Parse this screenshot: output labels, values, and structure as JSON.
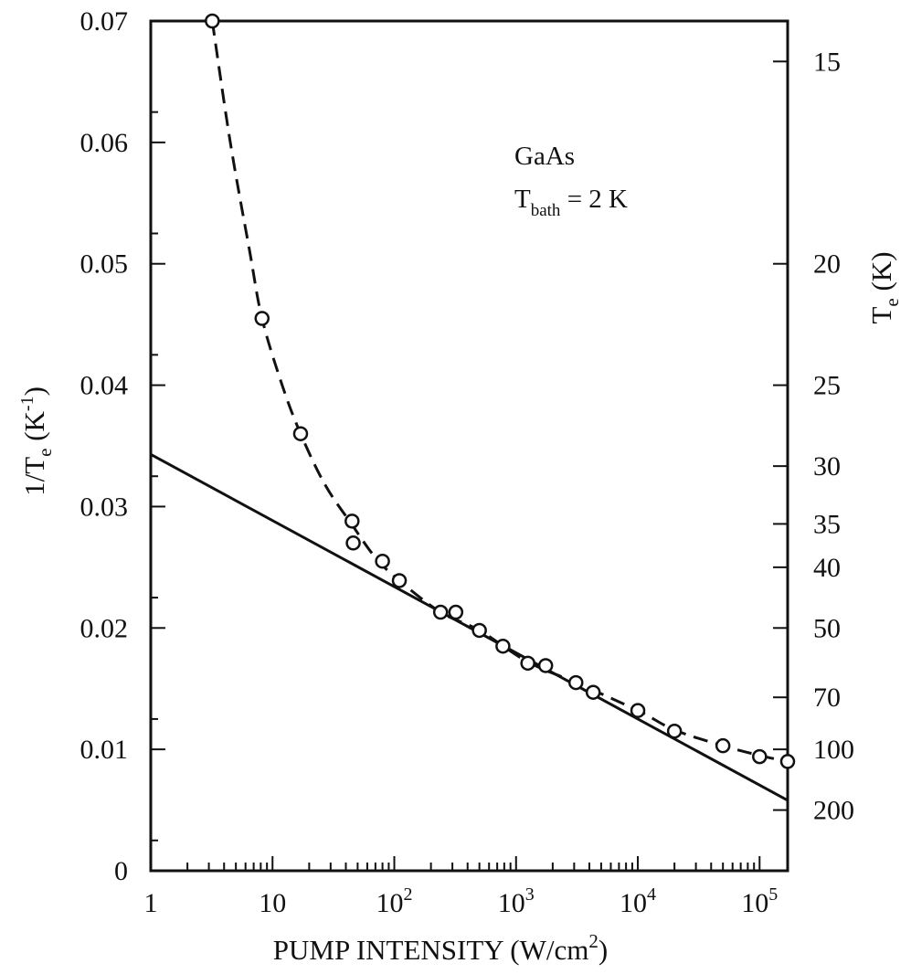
{
  "chart_data": {
    "type": "scatter",
    "title": "",
    "xlabel": "PUMP INTENSITY (W/cm²)",
    "ylabel": "1/Tₑ (K⁻¹)",
    "y2label": "Tₑ (K)",
    "x_scale": "log",
    "xlim": [
      1,
      170000
    ],
    "ylim": [
      0,
      0.07
    ],
    "x_ticks": [
      {
        "value": 1,
        "label": "1",
        "sup": ""
      },
      {
        "value": 10,
        "label": "10",
        "sup": ""
      },
      {
        "value": 100,
        "label": "10",
        "sup": "2"
      },
      {
        "value": 1000,
        "label": "10",
        "sup": "3"
      },
      {
        "value": 10000,
        "label": "10",
        "sup": "4"
      },
      {
        "value": 100000,
        "label": "10",
        "sup": "5"
      }
    ],
    "y_ticks": [
      "0",
      "0.01",
      "0.02",
      "0.03",
      "0.04",
      "0.05",
      "0.06",
      "0.07"
    ],
    "y_tick_values": [
      0,
      0.01,
      0.02,
      0.03,
      0.04,
      0.05,
      0.06,
      0.07
    ],
    "y2_ticks": [
      "15",
      "20",
      "25",
      "30",
      "35",
      "40",
      "50",
      "70",
      "100",
      "200"
    ],
    "y2_tick_values": [
      15,
      20,
      25,
      30,
      35,
      40,
      50,
      70,
      100,
      200
    ],
    "annotation": {
      "line1": "GaAs",
      "line2_main": "T",
      "line2_sub": "bath",
      "line2_rest": " = 2 K"
    },
    "series": [
      {
        "style": "open-circle",
        "points": [
          [
            3.2,
            0.07
          ],
          [
            8.2,
            0.0455
          ],
          [
            17,
            0.036
          ],
          [
            45,
            0.0288
          ],
          [
            46,
            0.027
          ],
          [
            80,
            0.0255
          ],
          [
            110,
            0.0239
          ],
          [
            240,
            0.0213
          ],
          [
            320,
            0.0213
          ],
          [
            500,
            0.0198
          ],
          [
            780,
            0.0185
          ],
          [
            1250,
            0.0171
          ],
          [
            1750,
            0.0169
          ],
          [
            3100,
            0.0155
          ],
          [
            4300,
            0.0147
          ],
          [
            10000,
            0.0132
          ],
          [
            20000,
            0.0115
          ],
          [
            50000,
            0.0103
          ],
          [
            100000,
            0.0094
          ],
          [
            170000,
            0.009
          ]
        ]
      },
      {
        "style": "dashed",
        "points": [
          [
            3.2,
            0.07
          ],
          [
            4.5,
            0.06
          ],
          [
            6.5,
            0.051
          ],
          [
            8.2,
            0.0455
          ],
          [
            12,
            0.04
          ],
          [
            17,
            0.036
          ],
          [
            27,
            0.0318
          ],
          [
            45,
            0.0285
          ],
          [
            70,
            0.0258
          ],
          [
            110,
            0.0239
          ],
          [
            240,
            0.0213
          ],
          [
            500,
            0.0198
          ],
          [
            1250,
            0.0172
          ],
          [
            3100,
            0.0155
          ],
          [
            10000,
            0.0132
          ],
          [
            20000,
            0.0116
          ],
          [
            50000,
            0.0103
          ],
          [
            100000,
            0.0095
          ],
          [
            170000,
            0.009
          ]
        ]
      },
      {
        "style": "solid",
        "points": [
          [
            1,
            0.0343
          ],
          [
            170000,
            0.0058
          ]
        ]
      }
    ]
  }
}
